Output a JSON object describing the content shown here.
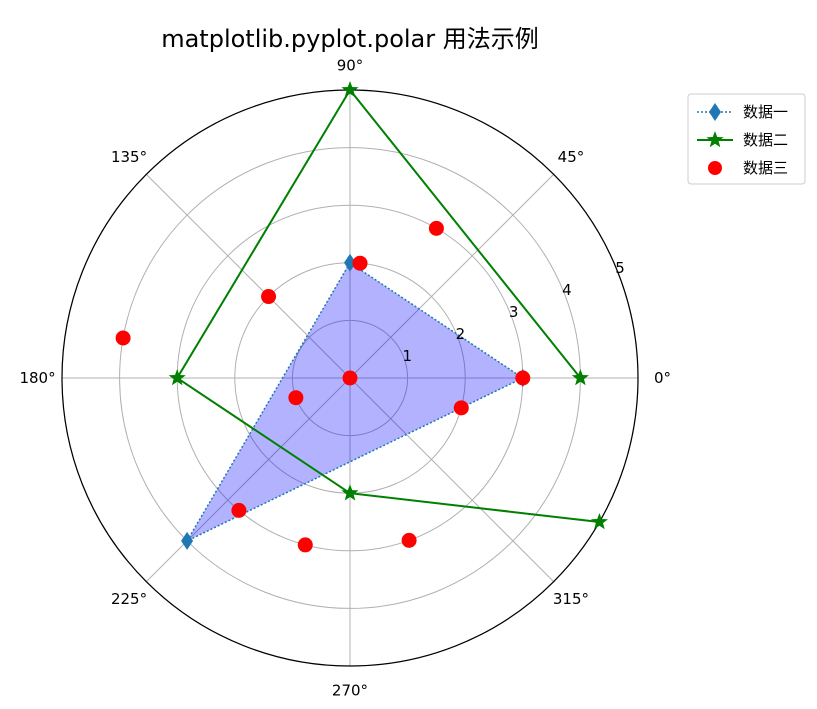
{
  "chart_data": {
    "type": "polar",
    "title": "matplotlib.pyplot.polar 用法示例",
    "rlim": [
      0,
      5
    ],
    "r_ticks": [
      "1",
      "2",
      "3",
      "4",
      "5"
    ],
    "theta_ticks": [
      {
        "deg": 0,
        "label": "0°"
      },
      {
        "deg": 45,
        "label": "45°"
      },
      {
        "deg": 90,
        "label": "90°"
      },
      {
        "deg": 135,
        "label": "135°"
      },
      {
        "deg": 180,
        "label": "180°"
      },
      {
        "deg": 225,
        "label": "225°"
      },
      {
        "deg": 270,
        "label": "270°"
      },
      {
        "deg": 315,
        "label": "315°"
      }
    ],
    "grid": true,
    "legend_position": "upper-right-outside",
    "series": [
      {
        "name": "数据一",
        "style": "dotted-line-diamond-filled",
        "color": "#1f77b4",
        "fill_color": "#0000ff",
        "points": [
          {
            "theta_deg": 0,
            "r": 3
          },
          {
            "theta_deg": 90,
            "r": 2
          },
          {
            "theta_deg": 225,
            "r": 4
          },
          {
            "theta_deg": 0,
            "r": 3
          }
        ]
      },
      {
        "name": "数据二",
        "style": "solid-line-star",
        "color": "#008000",
        "points": [
          {
            "theta_deg": 0,
            "r": 4
          },
          {
            "theta_deg": 90,
            "r": 5
          },
          {
            "theta_deg": 180,
            "r": 3
          },
          {
            "theta_deg": 270,
            "r": 2
          },
          {
            "theta_deg": 330,
            "r": 5
          }
        ]
      },
      {
        "name": "数据三",
        "style": "red-dots",
        "color": "#ff0000",
        "points": [
          {
            "theta_deg": 0,
            "r": 0
          },
          {
            "theta_deg": 0,
            "r": 3
          },
          {
            "theta_deg": 60,
            "r": 3
          },
          {
            "theta_deg": 85,
            "r": 2
          },
          {
            "theta_deg": 135,
            "r": 2
          },
          {
            "theta_deg": 170,
            "r": 4
          },
          {
            "theta_deg": 200,
            "r": 1
          },
          {
            "theta_deg": 230,
            "r": 3
          },
          {
            "theta_deg": 255,
            "r": 3
          },
          {
            "theta_deg": 290,
            "r": 3
          },
          {
            "theta_deg": 345,
            "r": 2
          }
        ]
      }
    ]
  }
}
